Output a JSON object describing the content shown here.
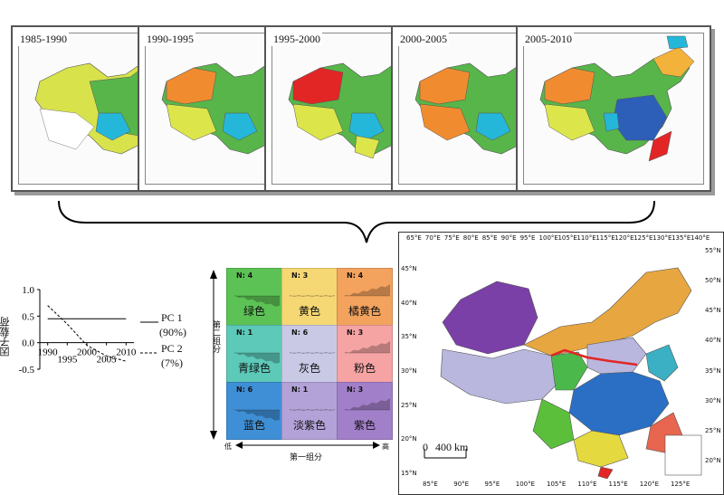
{
  "periods": [
    "1985-1990",
    "1990-1995",
    "1995-2000",
    "2000-2005",
    "2005-2010"
  ],
  "chart_data": {
    "type": "line",
    "ylabel": "因子载荷",
    "x": [
      1990,
      1995,
      2000,
      2005,
      2010
    ],
    "x_ticks": [
      "1990",
      "1995",
      "2000",
      "2005",
      "2010"
    ],
    "y_ticks": [
      "1.0",
      "0.5",
      "0.0",
      "-0.5"
    ],
    "ylim": [
      -0.5,
      1.0
    ],
    "series": [
      {
        "name": "PC 1",
        "share": "(90%)",
        "style": "solid",
        "values": [
          0.45,
          0.45,
          0.45,
          0.45,
          0.45
        ]
      },
      {
        "name": "PC 2",
        "share": "(7%)",
        "style": "dashed",
        "values": [
          0.7,
          0.35,
          -0.05,
          -0.25,
          -0.35
        ]
      }
    ]
  },
  "matrix": {
    "x_axis_label": "第一组分",
    "y_axis_label": "第二组分",
    "low": "低",
    "high": "高",
    "cells": [
      {
        "n": "N: 4",
        "name": "绿色",
        "color": "#5cc255"
      },
      {
        "n": "N: 3",
        "name": "黄色",
        "color": "#f5d773"
      },
      {
        "n": "N: 4",
        "name": "橘黄色",
        "color": "#f4a35e"
      },
      {
        "n": "N: 1",
        "name": "青绿色",
        "color": "#5dc9b8"
      },
      {
        "n": "N: 6",
        "name": "灰色",
        "color": "#c9c9e6"
      },
      {
        "n": "N: 3",
        "name": "粉色",
        "color": "#f5a3a3"
      },
      {
        "n": "N: 6",
        "name": "蓝色",
        "color": "#3f8fd6"
      },
      {
        "n": "N: 1",
        "name": "淡紫色",
        "color": "#b3a2d8"
      },
      {
        "n": "N: 3",
        "name": "紫色",
        "color": "#a27fc9"
      }
    ]
  },
  "map": {
    "top_lons": [
      "65°E",
      "70°E",
      "75°E",
      "80°E",
      "85°E",
      "90°E",
      "95°E",
      "100°E",
      "105°E",
      "110°E",
      "115°E",
      "120°E",
      "125°E",
      "130°E",
      "135°E",
      "140°E"
    ],
    "bottom_lons": [
      "85°E",
      "90°E",
      "95°E",
      "100°E",
      "105°E",
      "110°E",
      "115°E",
      "120°E",
      "125°E"
    ],
    "left_lats": [
      "45°N",
      "40°N",
      "35°N",
      "30°N",
      "25°N",
      "20°N",
      "15°N"
    ],
    "right_lats": [
      "55°N",
      "50°N",
      "45°N",
      "40°N",
      "35°N",
      "30°N",
      "25°N",
      "20°N"
    ],
    "scale_zero": "0",
    "scale_label": "400 km"
  }
}
